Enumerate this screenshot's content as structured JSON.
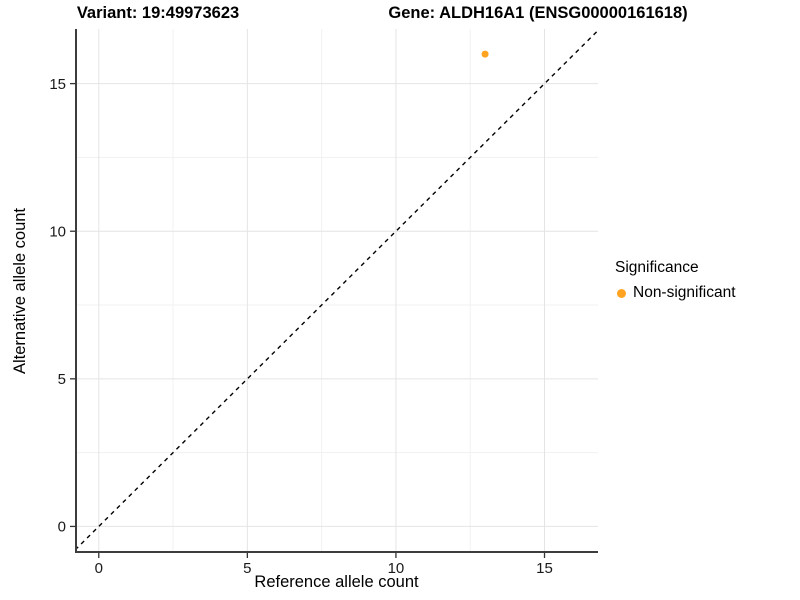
{
  "header": {
    "variant_title": "Variant: 19:49973623",
    "gene_title": "Gene: ALDH16A1 (ENSG00000161618)"
  },
  "legend": {
    "title": "Significance",
    "items": [
      {
        "label": "Non-significant",
        "color": "#FFA321",
        "shape": "circle"
      }
    ]
  },
  "chart_data": {
    "type": "scatter",
    "title": "Variant: 19:49973623 | Gene: ALDH16A1 (ENSG00000161618)",
    "xlabel": "Reference allele count",
    "ylabel": "Alternative allele count",
    "xlim": [
      -0.8,
      16.8
    ],
    "ylim": [
      -0.9,
      16.85
    ],
    "x_ticks": [
      0,
      5,
      10,
      15
    ],
    "y_ticks": [
      0,
      5,
      10,
      15
    ],
    "minor_ticks_x": [
      2.5,
      7.5,
      12.5
    ],
    "minor_ticks_y": [
      2.5,
      7.5,
      12.5
    ],
    "grid": true,
    "legend_position": "right",
    "series": [
      {
        "name": "Non-significant",
        "color": "#FFA321",
        "points": [
          {
            "x": 13,
            "y": 16
          }
        ]
      }
    ],
    "reference_line": {
      "type": "identity",
      "slope": 1,
      "intercept": 0,
      "style": "dashed",
      "color": "#000000"
    }
  },
  "style": {
    "background": "#FFFFFF",
    "point_color": "#FFA321",
    "point_radius": 3.5,
    "grid_major_color": "#E4E4E4",
    "grid_minor_color": "#F1F1F1",
    "axis_line_color": "#3D3D3D",
    "tick_color": "#333333",
    "tick_label_color": "#1A1A1A",
    "axis_title_color": "#000000"
  }
}
